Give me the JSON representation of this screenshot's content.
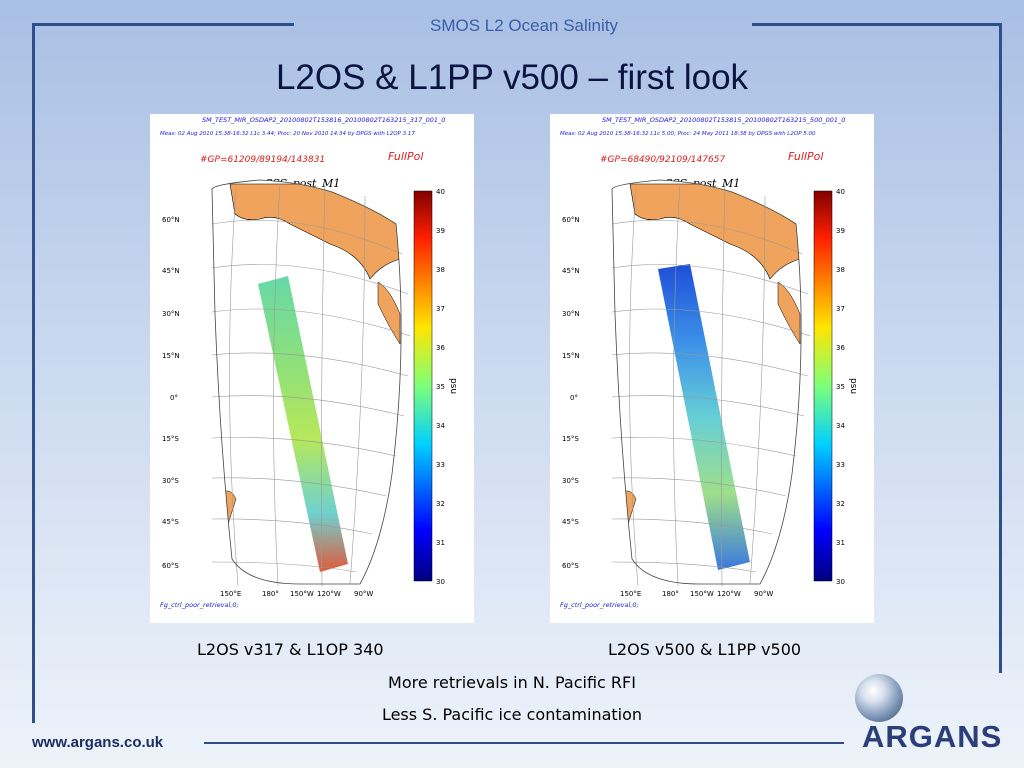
{
  "header": {
    "title": "SMOS L2 Ocean Salinity"
  },
  "slide": {
    "title": "L2OS & L1PP v500 – first look"
  },
  "panels": [
    {
      "file_name": "SM_TEST_MIR_OSDAP2_20100802T153816_20100802T163215_317_001_0",
      "meas_line": "Meas: 02 Aug 2010 15:38-16:32 L1c 3.44; Proc: 20 Nov 2010 14:34 by DPGS with L2OP 3.17",
      "gp_count": "#GP=61209/89194/143831",
      "mode": "FullPol",
      "plot_title": "SSS_post_M1",
      "footnote": "Fg_ctrl_poor_retrieval,0;",
      "caption": "L2OS v317 & L1OP 340"
    },
    {
      "file_name": "SM_TEST_MIR_OSDAP2_20100802T153815_20100802T163215_500_001_0",
      "meas_line": "Meas: 02 Aug 2010 15:38-16:32 L1c 5.00; Proc: 24 May 2011 18:38 by DPGS with L2OP 5.00",
      "gp_count": "#GP=68490/92109/147657",
      "mode": "FullPol",
      "plot_title": "SSS_post_M1",
      "footnote": "Fg_ctrl_poor_retrieval,0;",
      "caption": "L2OS v500 & L1PP v500"
    }
  ],
  "map": {
    "lat_labels": [
      "60°N",
      "45°N",
      "30°N",
      "15°N",
      "0°",
      "15°S",
      "30°S",
      "45°S",
      "60°S"
    ],
    "lon_labels": [
      "150°E",
      "180°",
      "150°W",
      "120°W",
      "90°W"
    ]
  },
  "colorbar": {
    "ticks": [
      "40",
      "39",
      "38",
      "37",
      "36",
      "35",
      "34",
      "33",
      "32",
      "31",
      "30"
    ],
    "label": "psu",
    "range": [
      30,
      40
    ]
  },
  "notes": [
    "More retrievals in N. Pacific RFI",
    "Less S. Pacific ice contamination"
  ],
  "footer": {
    "url": "www.argans.co.uk",
    "logo_text": "ARGANS"
  },
  "colors": {
    "frame": "#2f4f8c",
    "title": "#0b1340",
    "header": "#3a5ea8",
    "land": "#f0a35c",
    "caption_blue": "#1a1adb",
    "caption_red": "#d62020"
  }
}
